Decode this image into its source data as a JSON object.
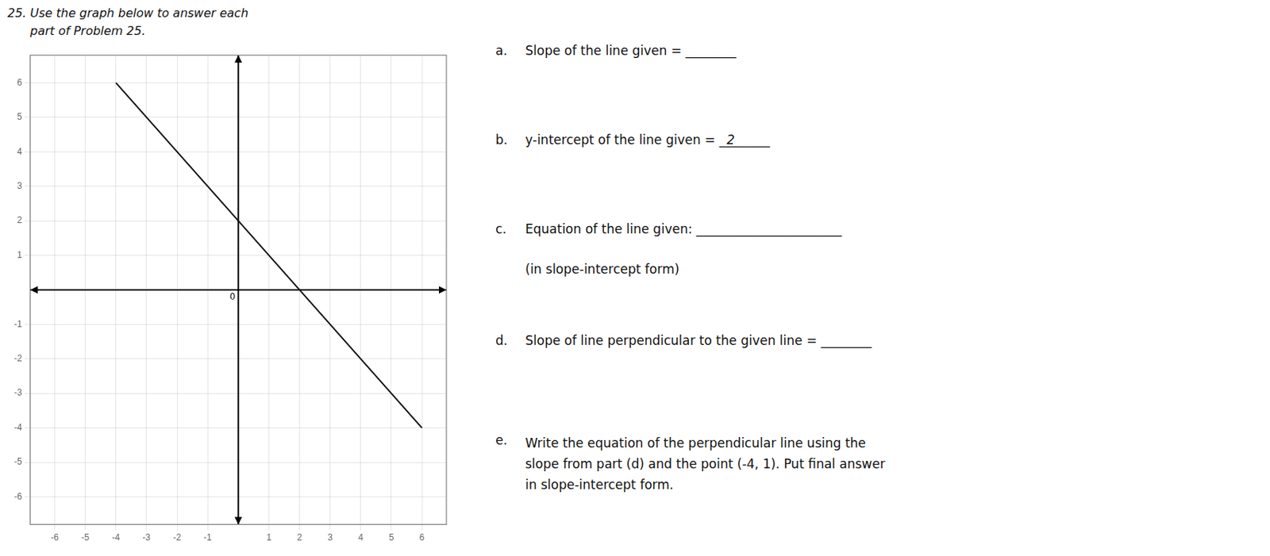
{
  "chart_data": {
    "type": "line",
    "title": "25. Use the graph below to answer each\n      part of Problem 25.",
    "x": [
      -4,
      6
    ],
    "values": [
      6,
      -4
    ],
    "color": "#111111",
    "xlim": [
      -6.8,
      6.8
    ],
    "ylim": [
      -6.8,
      6.8
    ],
    "xticks": [
      -6,
      -5,
      -4,
      -3,
      -2,
      -1,
      1,
      2,
      3,
      4,
      5,
      6
    ],
    "yticks": [
      -6,
      -5,
      -4,
      -3,
      -2,
      -1,
      1,
      2,
      3,
      4,
      5,
      6
    ],
    "grid": true,
    "annotations": [
      {
        "text": "0"
      },
      {
        "label": "a.",
        "text": "Slope of the line given = ",
        "blank": "________"
      },
      {
        "label": "b.",
        "text": "y-intercept of the line given = ",
        "blank": "________",
        "answer": "2"
      },
      {
        "label": "c.",
        "text": "Equation of the line given: ",
        "blank": "_______________________",
        "note": "(in slope-intercept form)"
      },
      {
        "label": "d.",
        "text": "Slope of line perpendicular to the given line = ",
        "blank": "________"
      },
      {
        "label": "e.",
        "text": "Write the equation of the perpendicular line using the\nslope from part (d) and the point (-4, 1).  Put final answer\nin slope-intercept form."
      }
    ]
  }
}
